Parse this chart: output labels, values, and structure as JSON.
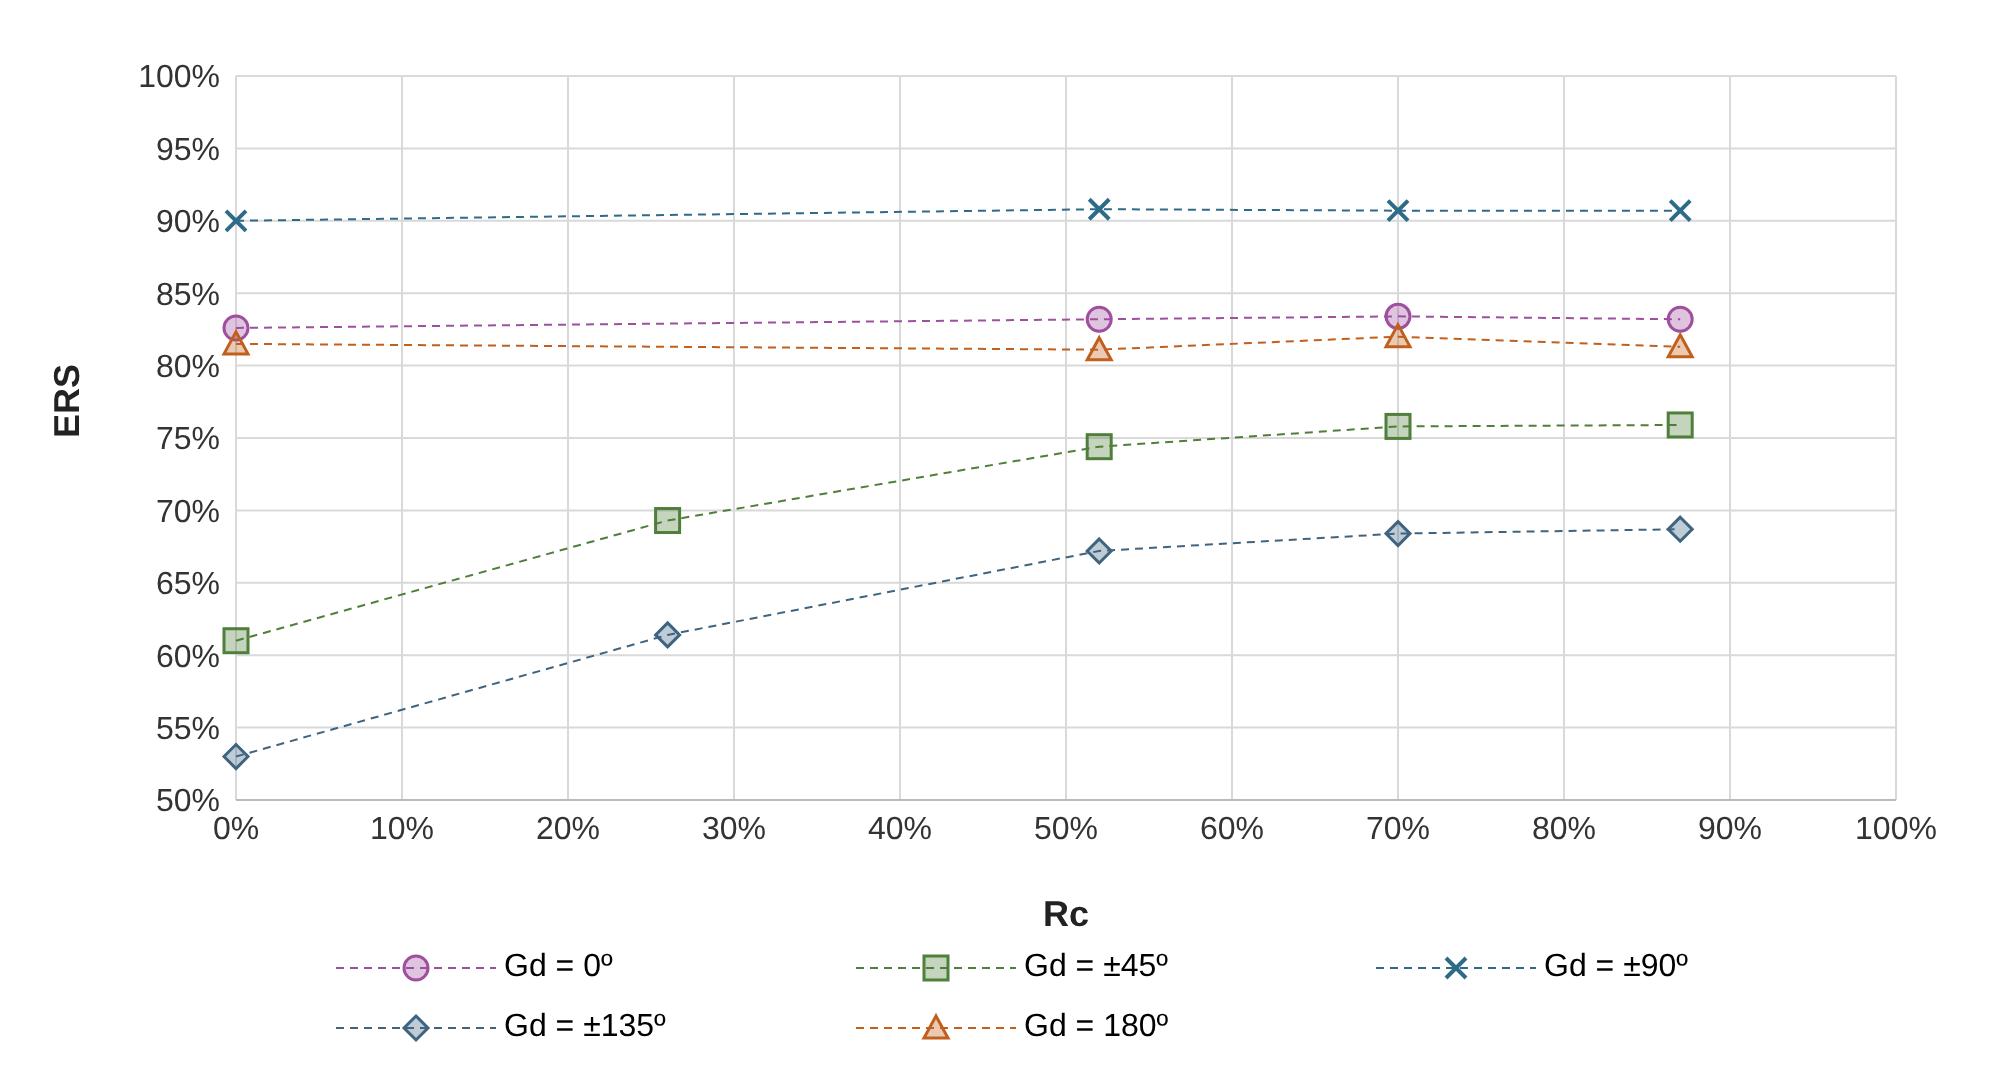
{
  "chart_data": {
    "type": "line",
    "xlabel": "Rc",
    "ylabel": "ERS",
    "xlim": [
      0,
      100
    ],
    "xticks": [
      {
        "value": 0,
        "label": "0%"
      },
      {
        "value": 10,
        "label": "10%"
      },
      {
        "value": 20,
        "label": "20%"
      },
      {
        "value": 30,
        "label": "30%"
      },
      {
        "value": 40,
        "label": "40%"
      },
      {
        "value": 50,
        "label": "50%"
      },
      {
        "value": 60,
        "label": "60%"
      },
      {
        "value": 70,
        "label": "70%"
      },
      {
        "value": 80,
        "label": "80%"
      },
      {
        "value": 90,
        "label": "90%"
      },
      {
        "value": 100,
        "label": "100%"
      }
    ],
    "ylim": [
      50,
      100
    ],
    "yticks": [
      {
        "value": 50,
        "label": "50%"
      },
      {
        "value": 55,
        "label": "55%"
      },
      {
        "value": 60,
        "label": "60%"
      },
      {
        "value": 65,
        "label": "65%"
      },
      {
        "value": 70,
        "label": "70%"
      },
      {
        "value": 75,
        "label": "75%"
      },
      {
        "value": 80,
        "label": "80%"
      },
      {
        "value": 85,
        "label": "85%"
      },
      {
        "value": 90,
        "label": "90%"
      },
      {
        "value": 95,
        "label": "95%"
      },
      {
        "value": 100,
        "label": "100%"
      }
    ],
    "grid": true,
    "legend": "bottom",
    "line_style": "dashed",
    "series": [
      {
        "name": "Gd = 0º",
        "color": "#9e4f9e",
        "marker": "circle",
        "x": [
          0,
          52,
          70,
          87
        ],
        "values": [
          82.6,
          83.2,
          83.4,
          83.2
        ]
      },
      {
        "name": "Gd = ±45º",
        "color": "#4f7f3a",
        "marker": "square",
        "x": [
          0,
          26,
          52,
          70,
          87
        ],
        "values": [
          61.0,
          69.3,
          74.4,
          75.8,
          75.9
        ]
      },
      {
        "name": "Gd = ±90º",
        "color": "#2e6b88",
        "marker": "cross",
        "x": [
          0,
          52,
          70,
          87
        ],
        "values": [
          90.0,
          90.8,
          90.7,
          90.7
        ]
      },
      {
        "name": "Gd = ±135º",
        "color": "#3f6480",
        "marker": "diamond",
        "x": [
          0,
          26,
          52,
          70,
          87
        ],
        "values": [
          53.0,
          61.4,
          67.2,
          68.4,
          68.7
        ]
      },
      {
        "name": "Gd = 180º",
        "color": "#c0601c",
        "marker": "triangle",
        "x": [
          0,
          52,
          70,
          87
        ],
        "values": [
          81.5,
          81.1,
          82.0,
          81.3
        ]
      }
    ]
  }
}
